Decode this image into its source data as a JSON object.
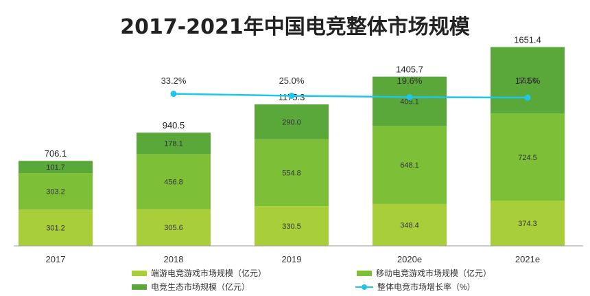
{
  "chart_data": {
    "type": "bar",
    "title": "2017-2021年中国电竞整体市场规模",
    "categories": [
      "2017",
      "2018",
      "2019",
      "2020e",
      "2021e"
    ],
    "series": [
      {
        "name": "端游电竞游戏市场规模（亿元）",
        "values": [
          301.2,
          305.6,
          330.5,
          348.4,
          374.3
        ],
        "color": "#a8cf39",
        "label_color": "#333333"
      },
      {
        "name": "移动电竞游戏市场规模（亿元）",
        "values": [
          303.2,
          456.8,
          554.8,
          648.1,
          724.5
        ],
        "color": "#7dbf36",
        "label_color": "#333333"
      },
      {
        "name": "电竞生态市场规模（亿元）",
        "values": [
          101.7,
          178.1,
          290.0,
          409.1,
          552.6
        ],
        "color": "#5aa73a",
        "label_color": "#333333"
      }
    ],
    "totals": [
      "706.1",
      "940.5",
      "1175.3",
      "1405.7",
      "1651.4"
    ],
    "stack_labels": [
      [
        "301.2",
        "305.6",
        "330.5",
        "348.4",
        "374.3"
      ],
      [
        "303.2",
        "456.8",
        "554.8",
        "648.1",
        "724.5"
      ],
      [
        "101.7",
        "178.1",
        "290.0",
        "409.1",
        "552.6"
      ]
    ],
    "growth": {
      "name": "整体电竞市场增长率（%）",
      "categories": [
        "2018",
        "2019",
        "2020e",
        "2021e"
      ],
      "values": [
        33.2,
        25.0,
        19.6,
        17.5
      ],
      "labels": [
        "33.2%",
        "25.0%",
        "19.6%",
        "17.5%"
      ],
      "color": "#1ec6e8"
    },
    "ylim": [
      0,
      1700
    ],
    "stacked": true,
    "grid": false,
    "legend_placement": "bottom"
  },
  "legend": {
    "pc": "端游电竞游戏市场规模（亿元）",
    "mobile": "移动电竞游戏市场规模（亿元）",
    "eco": "电竞生态市场规模（亿元）",
    "growth": "整体电竞市场增长率（%）"
  },
  "colors": {
    "pc": "#a8cf39",
    "mobile": "#7dbf36",
    "eco": "#5aa73a",
    "growth": "#1ec6e8",
    "axis": "#9a9a9a"
  }
}
